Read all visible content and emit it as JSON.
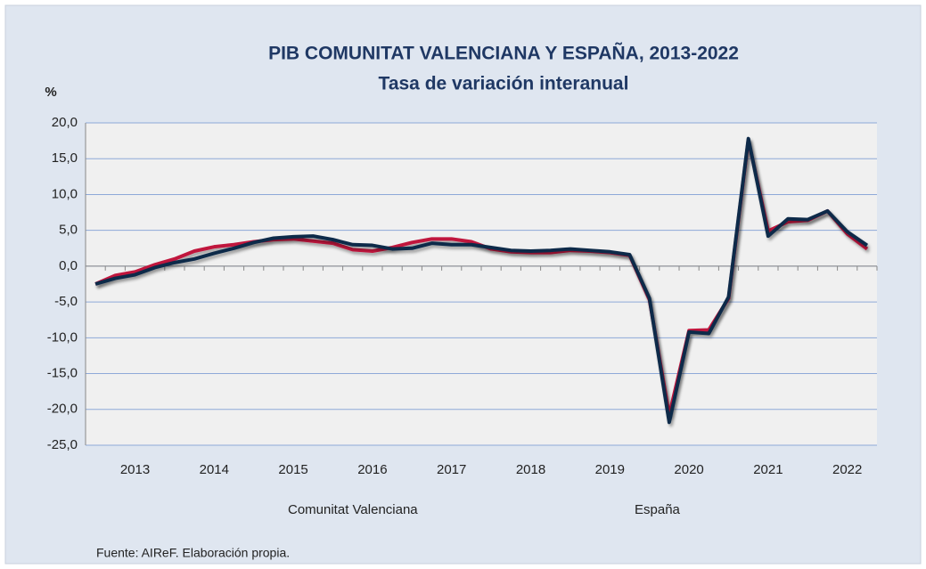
{
  "chart_data": {
    "type": "line",
    "title": "PIB COMUNITAT VALENCIANA Y ESPAÑA, 2013-2022",
    "subtitle": "Tasa de variación interanual",
    "y_label": "%",
    "source": "Fuente: AIReF. Elaboración propia.",
    "categories": [
      null,
      null,
      "2013",
      null,
      null,
      null,
      "2014",
      null,
      null,
      null,
      "2015",
      null,
      null,
      null,
      "2016",
      null,
      null,
      null,
      "2017",
      null,
      null,
      null,
      "2018",
      null,
      null,
      null,
      "2019",
      null,
      null,
      null,
      "2020",
      null,
      null,
      null,
      "2021",
      null,
      null,
      null,
      "2022",
      null
    ],
    "series": [
      {
        "name": "Comunitat Valenciana",
        "color": "#c0143c",
        "values": [
          -2.5,
          -1.3,
          -0.8,
          0.2,
          1.0,
          2.1,
          2.7,
          3.0,
          3.4,
          3.7,
          3.8,
          3.5,
          3.2,
          2.3,
          2.1,
          2.6,
          3.3,
          3.8,
          3.8,
          3.4,
          2.4,
          2.0,
          1.9,
          1.9,
          2.2,
          2.1,
          1.9,
          1.5,
          -4.7,
          -20.8,
          -9.0,
          -8.9,
          -4.5,
          17.6,
          4.9,
          6.2,
          6.4,
          7.7,
          4.5,
          2.4
        ]
      },
      {
        "name": "España",
        "color": "#0d2a4a",
        "values": [
          -2.5,
          -1.7,
          -1.2,
          -0.2,
          0.5,
          1.0,
          1.8,
          2.5,
          3.3,
          3.9,
          4.1,
          4.2,
          3.7,
          3.0,
          2.9,
          2.4,
          2.5,
          3.2,
          3.0,
          3.0,
          2.6,
          2.2,
          2.1,
          2.2,
          2.4,
          2.2,
          2.0,
          1.6,
          -4.5,
          -21.8,
          -9.2,
          -9.4,
          -4.3,
          17.8,
          4.2,
          6.6,
          6.5,
          7.7,
          4.8,
          2.9
        ]
      }
    ],
    "ylim": [
      -25,
      20
    ],
    "yticks": [
      {
        "value": -25,
        "label": "-25,0"
      },
      {
        "value": -20,
        "label": "-20,0"
      },
      {
        "value": -15,
        "label": "-15,0"
      },
      {
        "value": -10,
        "label": "-10,0"
      },
      {
        "value": -5,
        "label": "-5,0"
      },
      {
        "value": 0,
        "label": "0,0"
      },
      {
        "value": 5,
        "label": "5,0"
      },
      {
        "value": 10,
        "label": "10,0"
      },
      {
        "value": 15,
        "label": "15,0"
      },
      {
        "value": 20,
        "label": "20,0"
      }
    ],
    "grid": true,
    "legend": "bottom"
  }
}
